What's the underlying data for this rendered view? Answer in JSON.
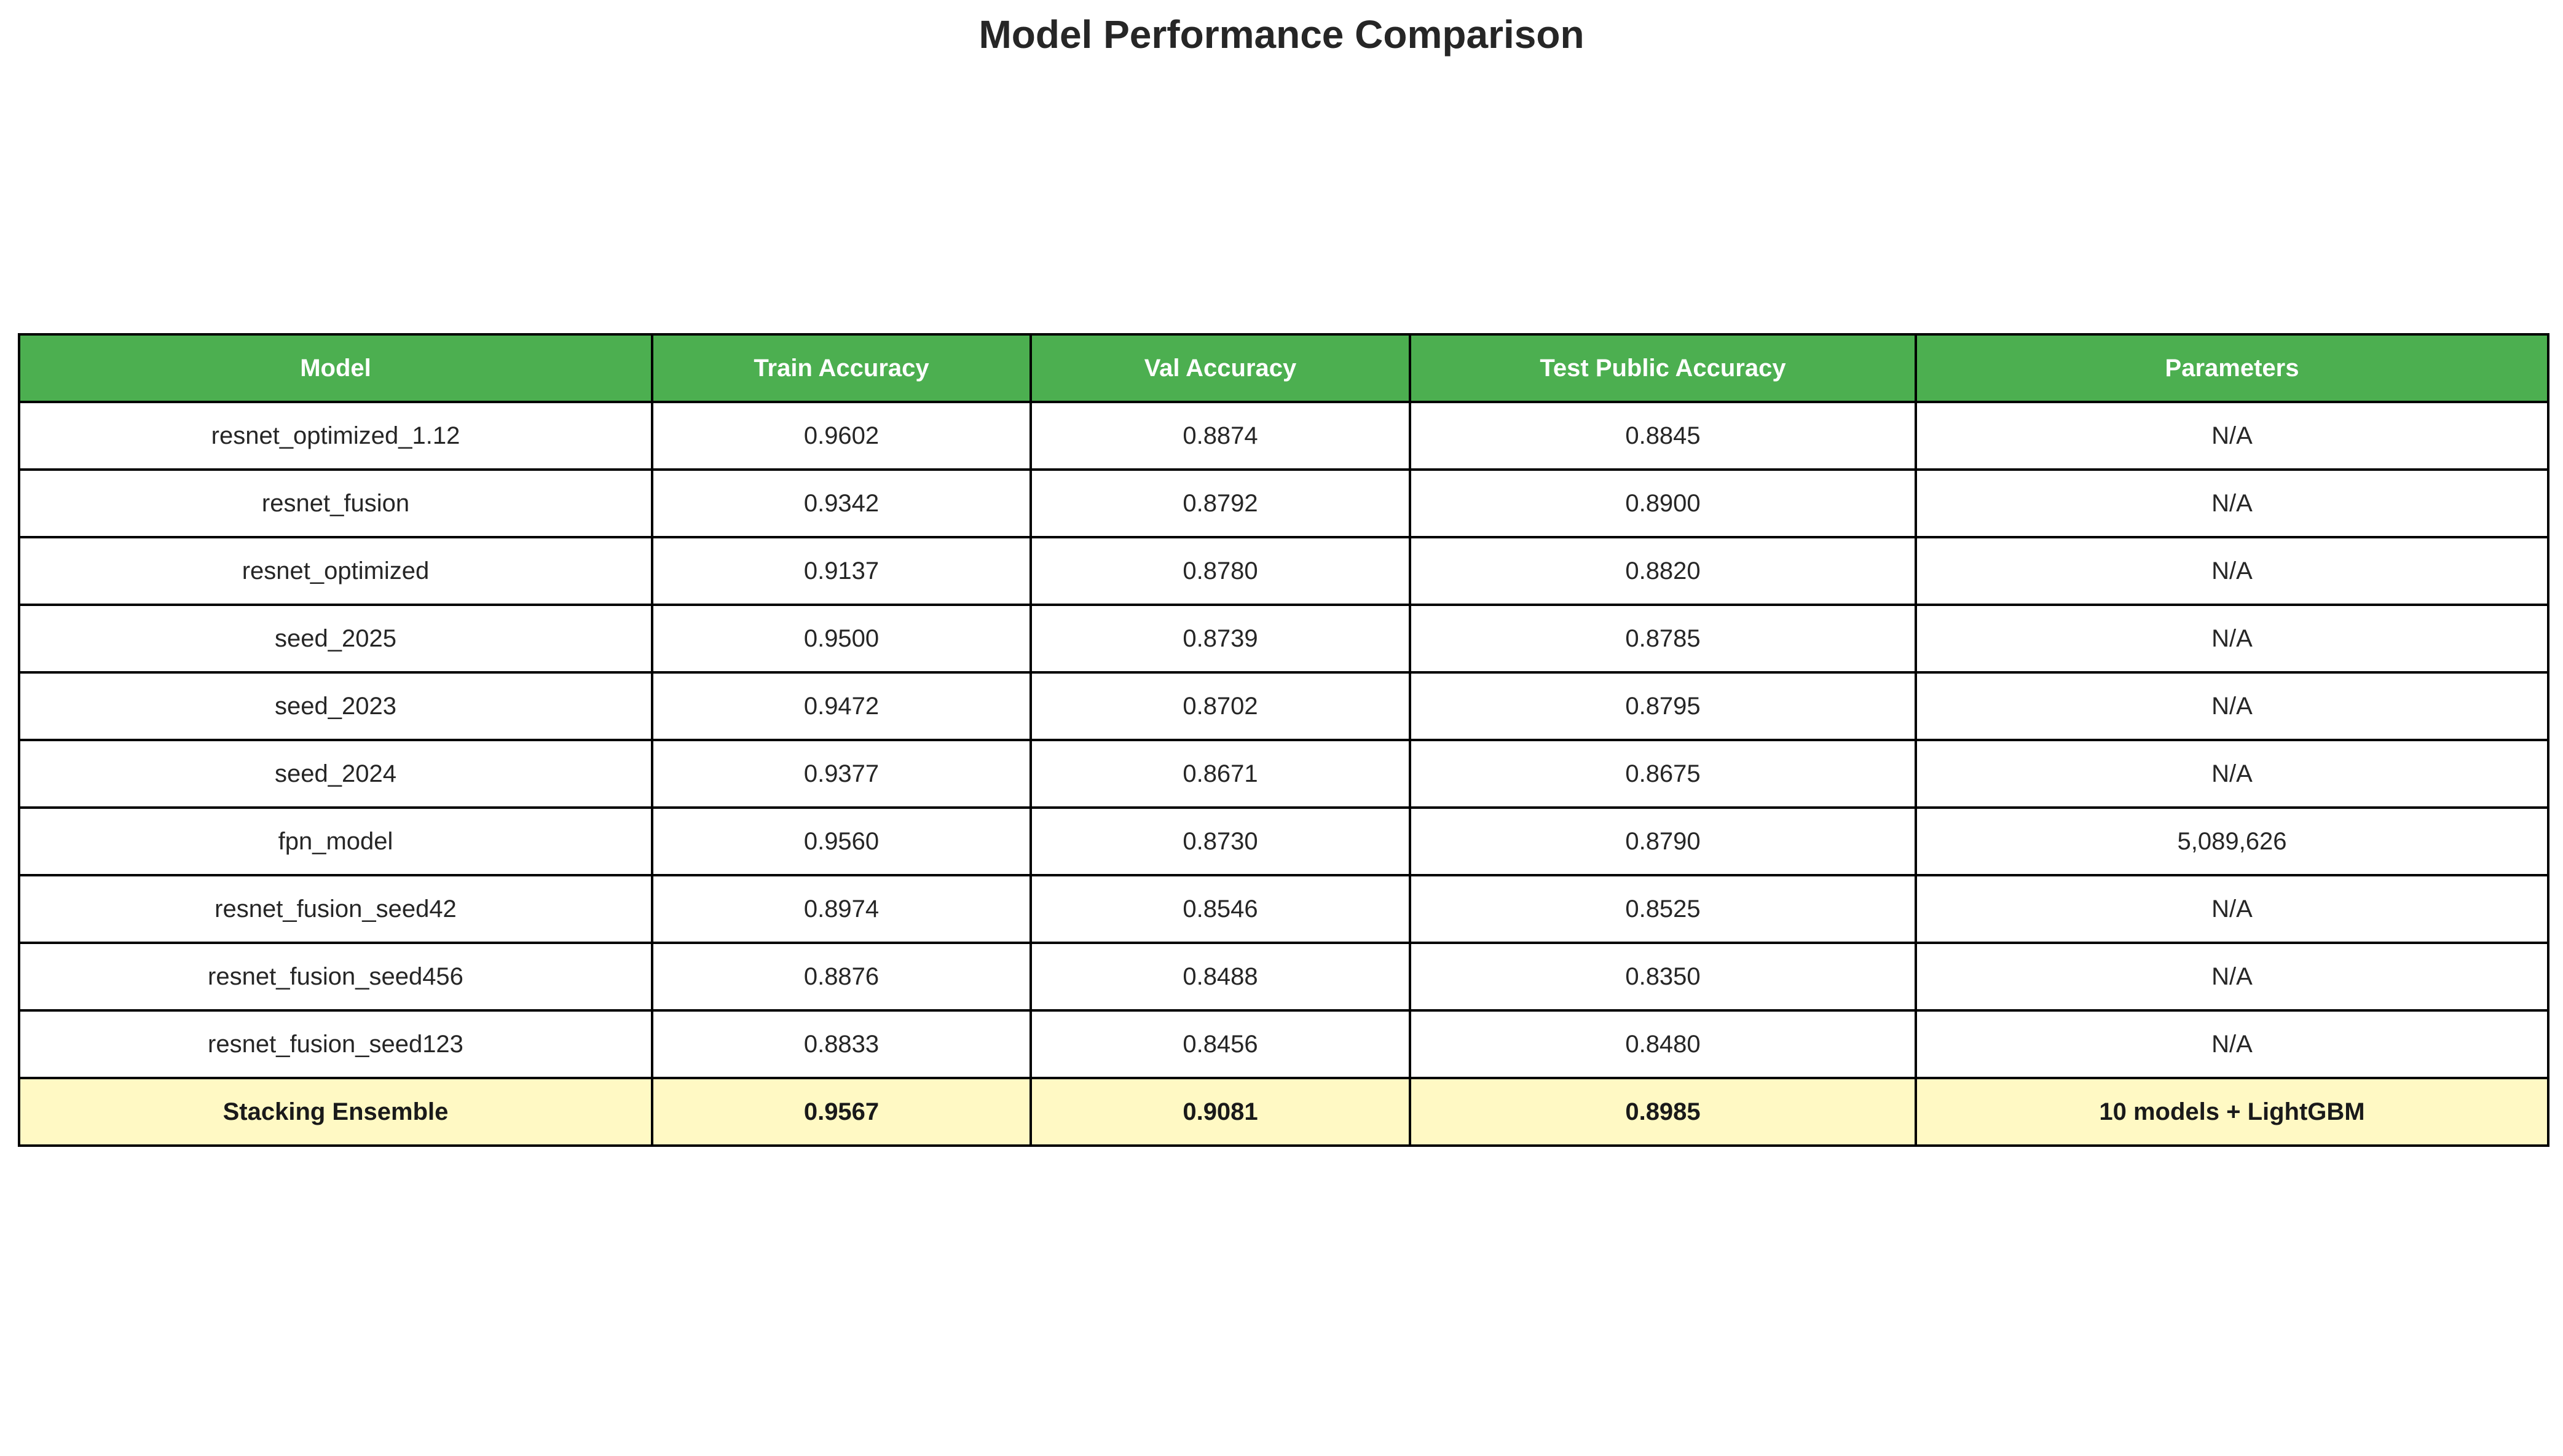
{
  "chart_data": {
    "type": "table",
    "title": "Model Performance Comparison",
    "columns": [
      "Model",
      "Train Accuracy",
      "Val Accuracy",
      "Test Public Accuracy",
      "Parameters"
    ],
    "rows": [
      [
        "resnet_optimized_1.12",
        "0.9602",
        "0.8874",
        "0.8845",
        "N/A"
      ],
      [
        "resnet_fusion",
        "0.9342",
        "0.8792",
        "0.8900",
        "N/A"
      ],
      [
        "resnet_optimized",
        "0.9137",
        "0.8780",
        "0.8820",
        "N/A"
      ],
      [
        "seed_2025",
        "0.9500",
        "0.8739",
        "0.8785",
        "N/A"
      ],
      [
        "seed_2023",
        "0.9472",
        "0.8702",
        "0.8795",
        "N/A"
      ],
      [
        "seed_2024",
        "0.9377",
        "0.8671",
        "0.8675",
        "N/A"
      ],
      [
        "fpn_model",
        "0.9560",
        "0.8730",
        "0.8790",
        "5,089,626"
      ],
      [
        "resnet_fusion_seed42",
        "0.8974",
        "0.8546",
        "0.8525",
        "N/A"
      ],
      [
        "resnet_fusion_seed456",
        "0.8876",
        "0.8488",
        "0.8350",
        "N/A"
      ],
      [
        "resnet_fusion_seed123",
        "0.8833",
        "0.8456",
        "0.8480",
        "N/A"
      ],
      [
        "Stacking Ensemble",
        "0.9567",
        "0.9081",
        "0.8985",
        "10 models + LightGBM"
      ]
    ],
    "highlight_row": "Stacking Ensemble",
    "colors": {
      "header_bg": "#4caf50",
      "header_text": "#ffffff",
      "highlight_bg": "#fff9c4",
      "border": "#000000"
    }
  }
}
